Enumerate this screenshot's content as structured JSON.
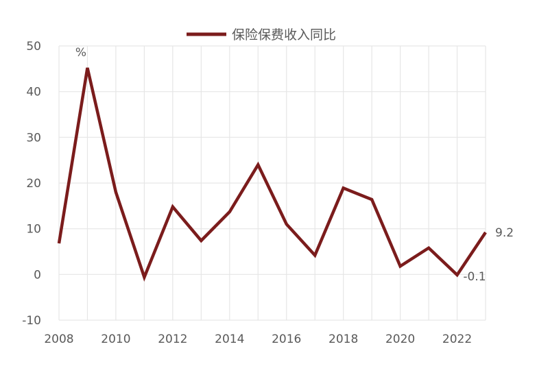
{
  "chart_data": {
    "type": "line",
    "title": "",
    "xlabel": "",
    "ylabel": "",
    "unit_label": "%",
    "x": [
      2008,
      2009,
      2010,
      2011,
      2012,
      2013,
      2014,
      2015,
      2016,
      2017,
      2018,
      2019,
      2020,
      2021,
      2022,
      2023
    ],
    "series": [
      {
        "name": "保险保费收入同比",
        "color": "#7B1C1C",
        "values": [
          6.8,
          45.2,
          18.0,
          -0.6,
          14.8,
          7.4,
          13.7,
          24.0,
          11.0,
          4.2,
          18.9,
          16.4,
          1.8,
          5.8,
          -0.1,
          9.2
        ]
      }
    ],
    "xticks": [
      "2008",
      "2010",
      "2012",
      "2014",
      "2016",
      "2018",
      "2020",
      "2022"
    ],
    "xtick_values": [
      2008,
      2010,
      2012,
      2014,
      2016,
      2018,
      2020,
      2022
    ],
    "yticks": [
      "50",
      "40",
      "30",
      "20",
      "10",
      "0",
      "-10"
    ],
    "ytick_values": [
      50,
      40,
      30,
      20,
      10,
      0,
      -10
    ],
    "ylim": [
      -10,
      50
    ],
    "xlim": [
      2008,
      2023
    ],
    "grid": true,
    "legend_position": "top",
    "annotations": [
      {
        "text": "9.2",
        "x": 2023,
        "y": 9.2
      },
      {
        "text": "-0.1",
        "x": 2022,
        "y": -0.1
      }
    ],
    "colors": {
      "grid": "#E6E6E6",
      "text": "#595959",
      "axis": "#D9D9D9"
    }
  }
}
